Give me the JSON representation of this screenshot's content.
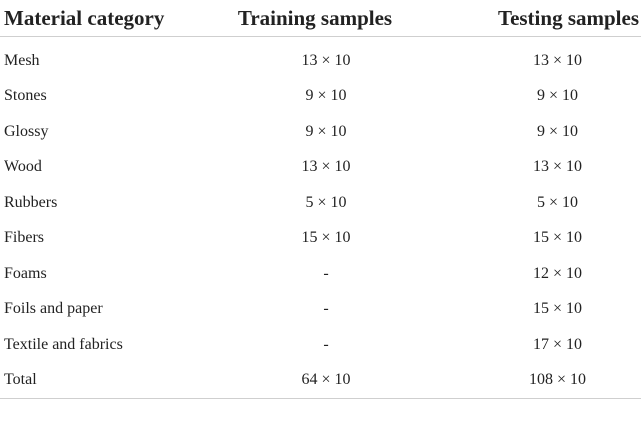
{
  "table": {
    "headers": [
      "Material category",
      "Training samples",
      "Testing samples"
    ],
    "rows": [
      {
        "category": "Mesh",
        "training": "13 × 10",
        "testing": "13 × 10"
      },
      {
        "category": "Stones",
        "training": "9 × 10",
        "testing": "9 × 10"
      },
      {
        "category": "Glossy",
        "training": "9 × 10",
        "testing": "9 × 10"
      },
      {
        "category": "Wood",
        "training": "13 × 10",
        "testing": "13 × 10"
      },
      {
        "category": "Rubbers",
        "training": "5 × 10",
        "testing": "5 × 10"
      },
      {
        "category": "Fibers",
        "training": "15 × 10",
        "testing": "15 × 10"
      },
      {
        "category": "Foams",
        "training": "-",
        "testing": "12 × 10"
      },
      {
        "category": "Foils and paper",
        "training": "-",
        "testing": "15 × 10"
      },
      {
        "category": "Textile and fabrics",
        "training": "-",
        "testing": "17 × 10"
      },
      {
        "category": "Total",
        "training": "64 × 10",
        "testing": "108 × 10"
      }
    ]
  }
}
